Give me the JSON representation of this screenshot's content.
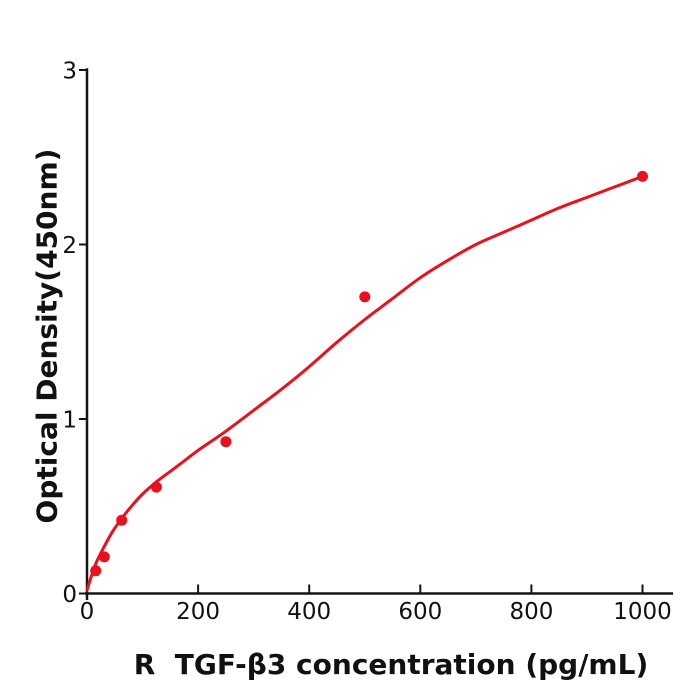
{
  "chart_data": {
    "type": "scatter",
    "title": "",
    "xlabel": "R  TGF-β3 concentration (pg/mL)",
    "ylabel": "Optical Density(450nm)",
    "xlim": [
      0,
      1055
    ],
    "ylim": [
      0,
      3.01
    ],
    "x_ticks": [
      0,
      200,
      400,
      600,
      800,
      1000
    ],
    "y_ticks": [
      0,
      1,
      2,
      3
    ],
    "grid": false,
    "legend": null,
    "series_color": "#e8111d",
    "axis_color": "#151515",
    "points": [
      [
        15.6,
        0.13
      ],
      [
        31.2,
        0.21
      ],
      [
        62.5,
        0.42
      ],
      [
        125,
        0.61
      ],
      [
        250,
        0.87
      ],
      [
        500,
        1.7
      ],
      [
        1000,
        2.39
      ]
    ],
    "fit_curve": [
      [
        0,
        0.02
      ],
      [
        8,
        0.1
      ],
      [
        15.6,
        0.17
      ],
      [
        31.2,
        0.27
      ],
      [
        45,
        0.35
      ],
      [
        62.5,
        0.43
      ],
      [
        80,
        0.5
      ],
      [
        100,
        0.57
      ],
      [
        125,
        0.64
      ],
      [
        150,
        0.7
      ],
      [
        175,
        0.76
      ],
      [
        200,
        0.82
      ],
      [
        250,
        0.93
      ],
      [
        300,
        1.05
      ],
      [
        350,
        1.17
      ],
      [
        400,
        1.3
      ],
      [
        450,
        1.44
      ],
      [
        500,
        1.57
      ],
      [
        550,
        1.69
      ],
      [
        600,
        1.81
      ],
      [
        650,
        1.91
      ],
      [
        700,
        2.0
      ],
      [
        750,
        2.07
      ],
      [
        800,
        2.14
      ],
      [
        850,
        2.21
      ],
      [
        900,
        2.27
      ],
      [
        950,
        2.33
      ],
      [
        1000,
        2.39
      ]
    ]
  }
}
